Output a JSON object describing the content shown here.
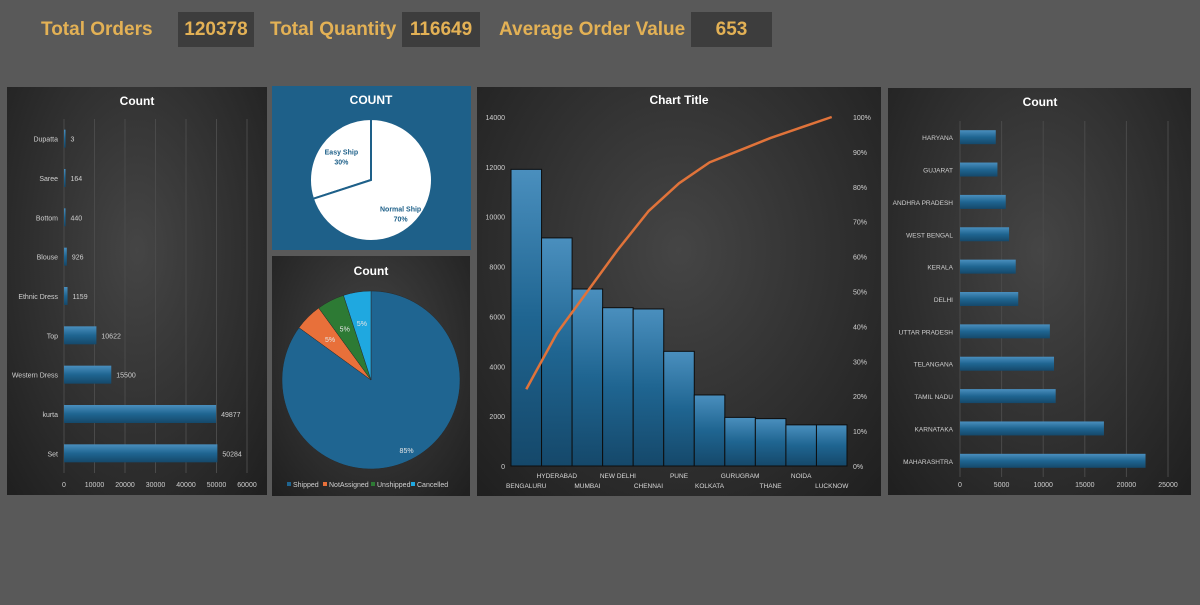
{
  "kpis": {
    "total_orders_label": "Total Orders",
    "total_orders_value": "120378",
    "total_quantity_label": "Total Quantity",
    "total_quantity_value": "116649",
    "avg_order_label": "Average Order Value",
    "avg_order_value": "653"
  },
  "colors": {
    "bar": "#1f6591",
    "line": "#e0733a",
    "kpi_text": "#e3b155",
    "blue_panel": "#1e6089"
  },
  "chart_data": [
    {
      "type": "bar",
      "orientation": "horizontal",
      "title": "Count",
      "categories": [
        "Dupatta",
        "Saree",
        "Bottom",
        "Blouse",
        "Ethnic Dress",
        "Top",
        "Western Dress",
        "kurta",
        "Set"
      ],
      "values": [
        3,
        164,
        440,
        926,
        1159,
        10622,
        15500,
        49877,
        50284
      ],
      "data_labels": [
        "3",
        "164",
        "440",
        "926",
        "1159",
        "10622",
        "15500",
        "49877",
        "50284"
      ],
      "xlim": [
        0,
        60000
      ],
      "xticks": [
        "0",
        "10000",
        "20000",
        "30000",
        "40000",
        "50000",
        "60000"
      ],
      "grid": true
    },
    {
      "type": "pie",
      "title": "COUNT",
      "labels": [
        "Easy Ship",
        "Normal Ship"
      ],
      "values": [
        30,
        70
      ],
      "data_labels": [
        "30%",
        "70%"
      ]
    },
    {
      "type": "pie",
      "title": "Count",
      "labels": [
        "Shipped",
        "NotAssigned",
        "Unshipped",
        "Cancelled"
      ],
      "values": [
        85,
        5,
        5,
        5
      ],
      "data_labels": [
        "85%",
        "5%",
        "5%",
        "5%"
      ],
      "colors": [
        "#1f6591",
        "#e8703a",
        "#2d7a34",
        "#1fa8e0"
      ],
      "legend": "bottom"
    },
    {
      "type": "pareto",
      "title": "Chart Title",
      "categories": [
        "BENGALURU",
        "HYDERABAD",
        "MUMBAI",
        "NEW DELHI",
        "CHENNAI",
        "PUNE",
        "KOLKATA",
        "GURUGRAM",
        "THANE",
        "NOIDA",
        "LUCKNOW"
      ],
      "values": [
        11900,
        9150,
        7100,
        6350,
        6300,
        4600,
        2850,
        1950,
        1900,
        1650,
        1650
      ],
      "cumulative_percent": [
        22,
        38,
        50,
        62,
        73,
        81,
        87,
        90.5,
        94,
        97,
        100
      ],
      "ylim": [
        0,
        14000
      ],
      "yticks": [
        "0",
        "2000",
        "4000",
        "6000",
        "8000",
        "10000",
        "12000",
        "14000"
      ],
      "y2ticks": [
        "0%",
        "10%",
        "20%",
        "30%",
        "40%",
        "50%",
        "60%",
        "70%",
        "80%",
        "90%",
        "100%"
      ]
    },
    {
      "type": "bar",
      "orientation": "horizontal",
      "title": "Count",
      "categories": [
        "HARYANA",
        "GUJARAT",
        "ANDHRA PRADESH",
        "WEST BENGAL",
        "KERALA",
        "DELHI",
        "UTTAR PRADESH",
        "TELANGANA",
        "TAMIL NADU",
        "KARNATAKA",
        "MAHARASHTRA"
      ],
      "values": [
        4300,
        4500,
        5500,
        5900,
        6700,
        7000,
        10800,
        11300,
        11500,
        17300,
        22300
      ],
      "xlim": [
        0,
        25000
      ],
      "xticks": [
        "0",
        "5000",
        "10000",
        "15000",
        "20000",
        "25000"
      ],
      "grid": true
    }
  ]
}
